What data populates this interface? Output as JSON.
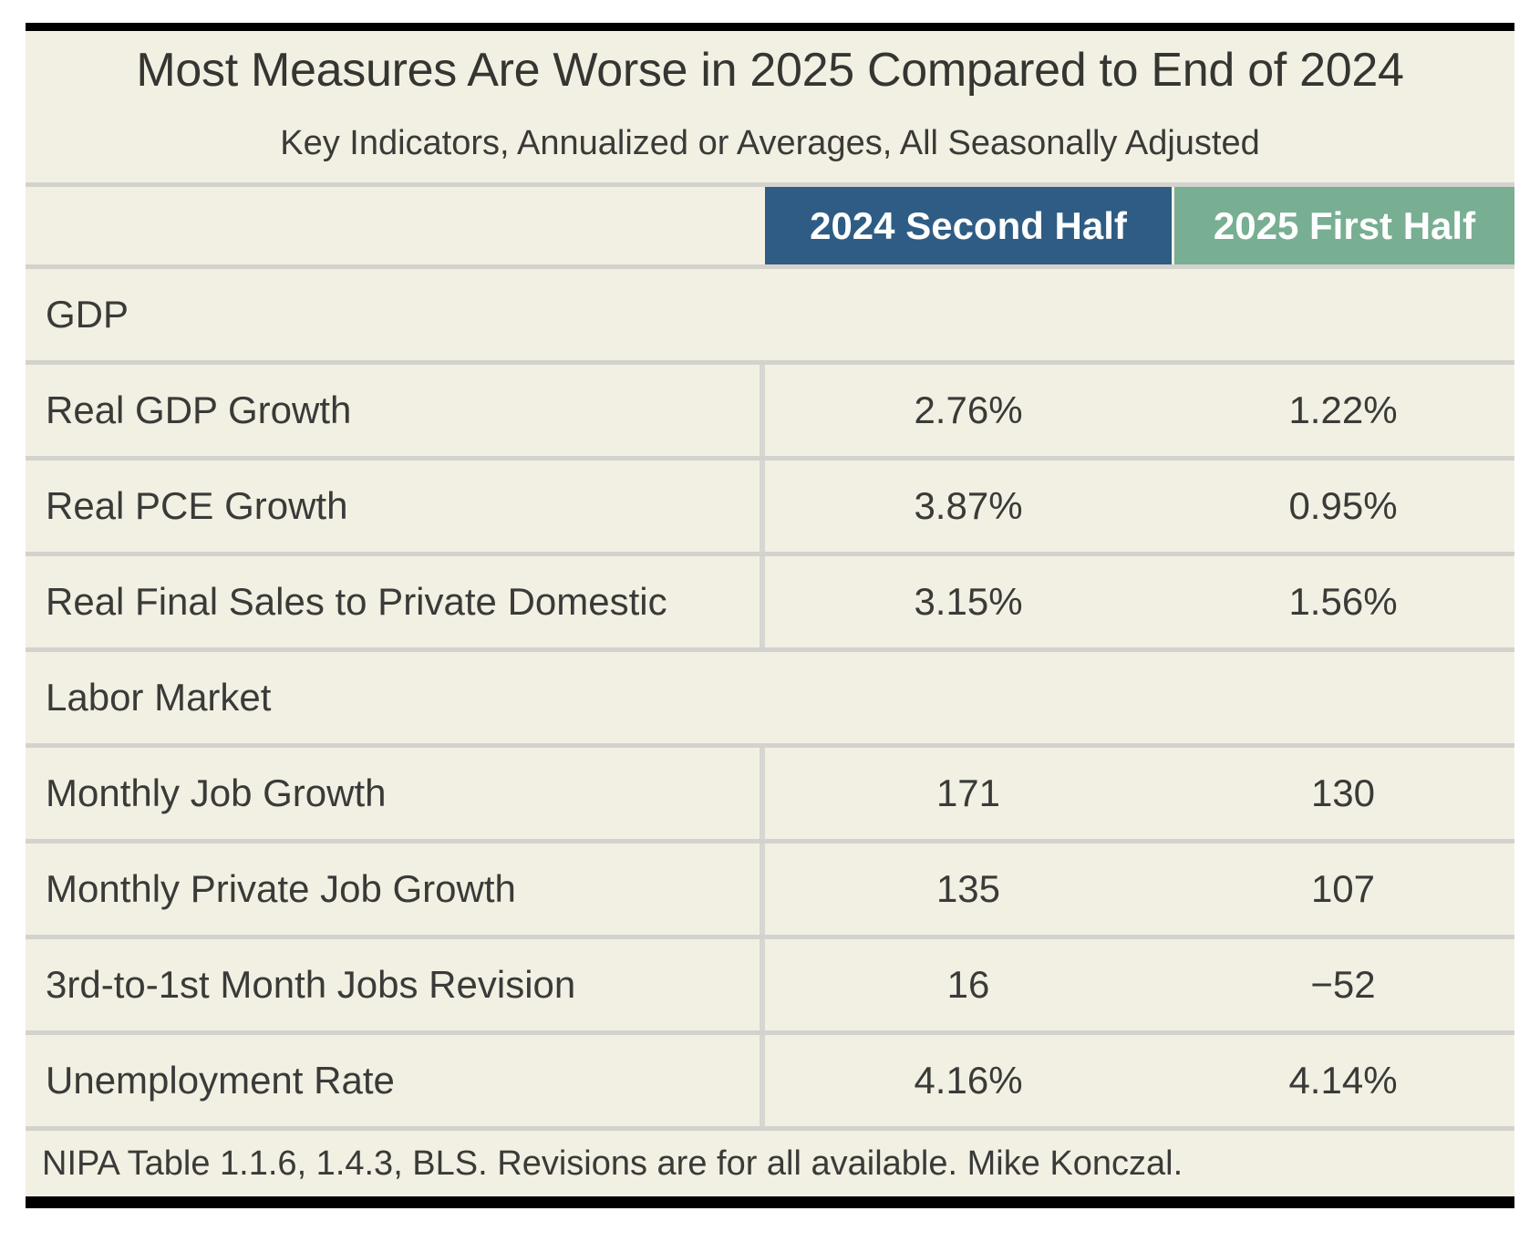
{
  "header": {
    "title": "Most Measures Are Worse in 2025 Compared to End of 2024",
    "subtitle": "Key Indicators, Annualized or Averages, All Seasonally Adjusted"
  },
  "table": {
    "columns": [
      "2024 Second Half",
      "2025 First Half"
    ],
    "rows": [
      {
        "type": "section",
        "label": "GDP"
      },
      {
        "type": "data",
        "label": "Real GDP Growth",
        "values": [
          "2.76%",
          "1.22%"
        ]
      },
      {
        "type": "data",
        "label": "Real PCE Growth",
        "values": [
          "3.87%",
          "0.95%"
        ]
      },
      {
        "type": "data",
        "label": "Real Final Sales to Private Domestic",
        "values": [
          "3.15%",
          "1.56%"
        ]
      },
      {
        "type": "section",
        "label": "Labor Market"
      },
      {
        "type": "data",
        "label": "Monthly Job Growth",
        "values": [
          "171",
          "130"
        ]
      },
      {
        "type": "data",
        "label": "Monthly Private Job Growth",
        "values": [
          "135",
          "107"
        ]
      },
      {
        "type": "data",
        "label": "3rd-to-1st Month Jobs Revision",
        "values": [
          "16",
          "−52"
        ]
      },
      {
        "type": "data",
        "label": "Unemployment Rate",
        "values": [
          "4.16%",
          "4.14%"
        ]
      }
    ],
    "source_note": "NIPA Table 1.1.6, 1.4.3, BLS. Revisions are for all available. Mike Konczal."
  },
  "colors": {
    "card_background": "#f2f0e3",
    "divider_gray": "#d3d2ce",
    "header_2024_bg": "#2e5c84",
    "header_2025_bg": "#78ae92",
    "header_text": "#ffffff",
    "body_text": "#3a3a38",
    "rule_black": "#000000"
  },
  "chart_data": {
    "type": "table",
    "title": "Most Measures Are Worse in 2025 Compared to End of 2024",
    "subtitle": "Key Indicators, Annualized or Averages, All Seasonally Adjusted",
    "columns": [
      "2024 Second Half",
      "2025 First Half"
    ],
    "sections": [
      {
        "name": "GDP",
        "rows": [
          {
            "label": "Real GDP Growth",
            "2024 Second Half": "2.76%",
            "2025 First Half": "1.22%"
          },
          {
            "label": "Real PCE Growth",
            "2024 Second Half": "3.87%",
            "2025 First Half": "0.95%"
          },
          {
            "label": "Real Final Sales to Private Domestic",
            "2024 Second Half": "3.15%",
            "2025 First Half": "1.56%"
          }
        ]
      },
      {
        "name": "Labor Market",
        "rows": [
          {
            "label": "Monthly Job Growth",
            "2024 Second Half": "171",
            "2025 First Half": "130"
          },
          {
            "label": "Monthly Private Job Growth",
            "2024 Second Half": "135",
            "2025 First Half": "107"
          },
          {
            "label": "3rd-to-1st Month Jobs Revision",
            "2024 Second Half": "16",
            "2025 First Half": "−52"
          },
          {
            "label": "Unemployment Rate",
            "2024 Second Half": "4.16%",
            "2025 First Half": "4.14%"
          }
        ]
      }
    ],
    "source_note": "NIPA Table 1.1.6, 1.4.3, BLS. Revisions are for all available. Mike Konczal."
  }
}
